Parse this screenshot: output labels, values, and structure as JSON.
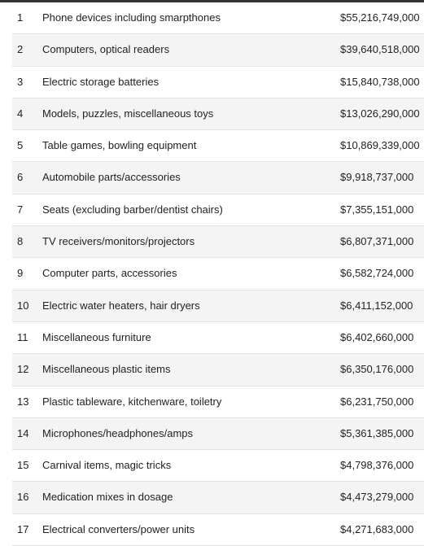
{
  "table": {
    "rows": [
      {
        "rank": "1",
        "product": "Phone devices including smarpthones",
        "value": "$55,216,749,000"
      },
      {
        "rank": "2",
        "product": "Computers, optical readers",
        "value": "$39,640,518,000"
      },
      {
        "rank": "3",
        "product": "Electric storage batteries",
        "value": "$15,840,738,000"
      },
      {
        "rank": "4",
        "product": "Models, puzzles, miscellaneous toys",
        "value": "$13,026,290,000"
      },
      {
        "rank": "5",
        "product": "Table games, bowling equipment",
        "value": "$10,869,339,000"
      },
      {
        "rank": "6",
        "product": "Automobile parts/accessories",
        "value": "$9,918,737,000"
      },
      {
        "rank": "7",
        "product": "Seats (excluding barber/dentist chairs)",
        "value": "$7,355,151,000"
      },
      {
        "rank": "8",
        "product": "TV receivers/monitors/projectors",
        "value": "$6,807,371,000"
      },
      {
        "rank": "9",
        "product": "Computer parts, accessories",
        "value": "$6,582,724,000"
      },
      {
        "rank": "10",
        "product": "Electric water heaters, hair dryers",
        "value": "$6,411,152,000"
      },
      {
        "rank": "11",
        "product": "Miscellaneous furniture",
        "value": "$6,402,660,000"
      },
      {
        "rank": "12",
        "product": "Miscellaneous plastic items",
        "value": "$6,350,176,000"
      },
      {
        "rank": "13",
        "product": "Plastic tableware, kitchenware, toiletry",
        "value": "$6,231,750,000"
      },
      {
        "rank": "14",
        "product": "Microphones/headphones/amps",
        "value": "$5,361,385,000"
      },
      {
        "rank": "15",
        "product": "Carnival items, magic tricks",
        "value": "$4,798,376,000"
      },
      {
        "rank": "16",
        "product": "Medication mixes in dosage",
        "value": "$4,473,279,000"
      },
      {
        "rank": "17",
        "product": "Electrical converters/power units",
        "value": "$4,271,683,000"
      }
    ]
  }
}
